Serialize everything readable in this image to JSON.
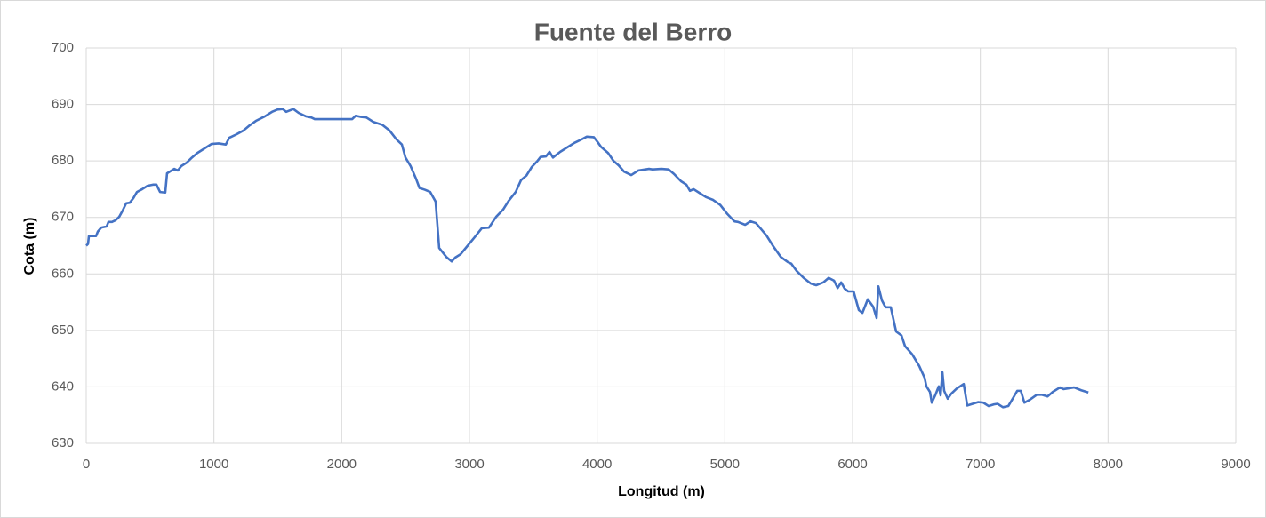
{
  "chart_data": {
    "type": "line",
    "title": "Fuente del Berro",
    "x_label": "Longitud (m)",
    "y_label": "Cota (m)",
    "xlim": [
      0,
      9000
    ],
    "xticks": [
      0,
      1000,
      2000,
      3000,
      4000,
      5000,
      6000,
      7000,
      8000,
      9000
    ],
    "ylim": [
      630,
      700
    ],
    "yticks": [
      630,
      640,
      650,
      660,
      670,
      680,
      690,
      700
    ],
    "grid": true,
    "series": [
      {
        "name": "Cota",
        "color": "#4472c4",
        "x": [
          0,
          14,
          21,
          77,
          91,
          118,
          160,
          174,
          202,
          230,
          258,
          285,
          313,
          341,
          369,
          397,
          438,
          480,
          522,
          550,
          578,
          619,
          633,
          689,
          717,
          745,
          787,
          828,
          870,
          926,
          981,
          1037,
          1093,
          1120,
          1176,
          1232,
          1274,
          1329,
          1399,
          1455,
          1497,
          1538,
          1566,
          1622,
          1664,
          1720,
          1762,
          1789,
          1900,
          2040,
          2082,
          2109,
          2151,
          2193,
          2248,
          2318,
          2374,
          2429,
          2471,
          2499,
          2539,
          2581,
          2609,
          2651,
          2693,
          2735,
          2763,
          2819,
          2861,
          2889,
          2931,
          2986,
          3041,
          3097,
          3153,
          3209,
          3264,
          3306,
          3362,
          3404,
          3446,
          3487,
          3529,
          3557,
          3599,
          3627,
          3654,
          3710,
          3766,
          3822,
          3877,
          3919,
          3974,
          4002,
          4030,
          4086,
          4128,
          4169,
          4211,
          4267,
          4322,
          4406,
          4434,
          4503,
          4559,
          4601,
          4657,
          4699,
          4727,
          4755,
          4810,
          4852,
          4908,
          4964,
          5020,
          5075,
          5103,
          5159,
          5201,
          5243,
          5285,
          5326,
          5382,
          5438,
          5493,
          5521,
          5563,
          5617,
          5673,
          5715,
          5771,
          5813,
          5855,
          5883,
          5911,
          5938,
          5966,
          6008,
          6049,
          6077,
          6119,
          6161,
          6188,
          6202,
          6230,
          6258,
          6299,
          6341,
          6383,
          6411,
          6466,
          6522,
          6564,
          6578,
          6606,
          6620,
          6647,
          6675,
          6689,
          6703,
          6717,
          6745,
          6773,
          6815,
          6870,
          6898,
          6940,
          6982,
          7024,
          7065,
          7107,
          7135,
          7177,
          7219,
          7261,
          7289,
          7317,
          7345,
          7386,
          7442,
          7484,
          7526,
          7567,
          7623,
          7651,
          7734,
          7790,
          7846
        ],
        "values": [
          665.0,
          665.3,
          666.7,
          666.7,
          667.5,
          668.2,
          668.4,
          669.2,
          669.2,
          669.5,
          670.1,
          671.2,
          672.5,
          672.6,
          673.4,
          674.5,
          675.0,
          675.6,
          675.8,
          675.8,
          674.5,
          674.4,
          677.8,
          678.6,
          678.3,
          679.1,
          679.7,
          680.6,
          681.4,
          682.2,
          683.0,
          683.1,
          682.9,
          684.1,
          684.7,
          685.4,
          686.2,
          687.1,
          687.9,
          688.7,
          689.1,
          689.2,
          688.7,
          689.2,
          688.5,
          687.9,
          687.7,
          687.4,
          687.4,
          687.4,
          687.4,
          688.0,
          687.8,
          687.7,
          686.9,
          686.4,
          685.4,
          683.8,
          682.9,
          680.6,
          679.1,
          676.9,
          675.2,
          674.9,
          674.5,
          672.8,
          664.6,
          663.0,
          662.2,
          662.9,
          663.5,
          665.0,
          666.5,
          668.1,
          668.2,
          670.1,
          671.4,
          672.9,
          674.5,
          676.6,
          677.4,
          678.9,
          679.9,
          680.7,
          680.8,
          681.6,
          680.6,
          681.6,
          682.4,
          683.2,
          683.8,
          684.3,
          684.2,
          683.4,
          682.5,
          681.4,
          680.0,
          679.2,
          678.1,
          677.5,
          678.3,
          678.6,
          678.5,
          678.6,
          678.5,
          677.7,
          676.4,
          675.8,
          674.7,
          675.0,
          674.2,
          673.6,
          673.1,
          672.2,
          670.6,
          669.3,
          669.2,
          668.7,
          669.3,
          669.0,
          667.9,
          666.8,
          664.8,
          663.0,
          662.1,
          661.8,
          660.5,
          659.3,
          658.3,
          658.0,
          658.5,
          659.3,
          658.8,
          657.5,
          658.5,
          657.4,
          656.9,
          656.9,
          653.6,
          653.1,
          655.5,
          654.2,
          652.2,
          657.8,
          655.3,
          654.1,
          654.1,
          649.8,
          649.1,
          647.2,
          645.8,
          643.7,
          641.6,
          640.1,
          639.1,
          637.2,
          638.5,
          640.1,
          638.5,
          642.6,
          639.3,
          637.9,
          638.8,
          639.7,
          640.5,
          636.7,
          637.0,
          637.3,
          637.2,
          636.6,
          636.9,
          637.0,
          636.4,
          636.6,
          638.2,
          639.3,
          639.3,
          637.2,
          637.7,
          638.6,
          638.6,
          638.3,
          639.1,
          639.9,
          639.6,
          639.9,
          639.4,
          639.0
        ]
      }
    ]
  }
}
